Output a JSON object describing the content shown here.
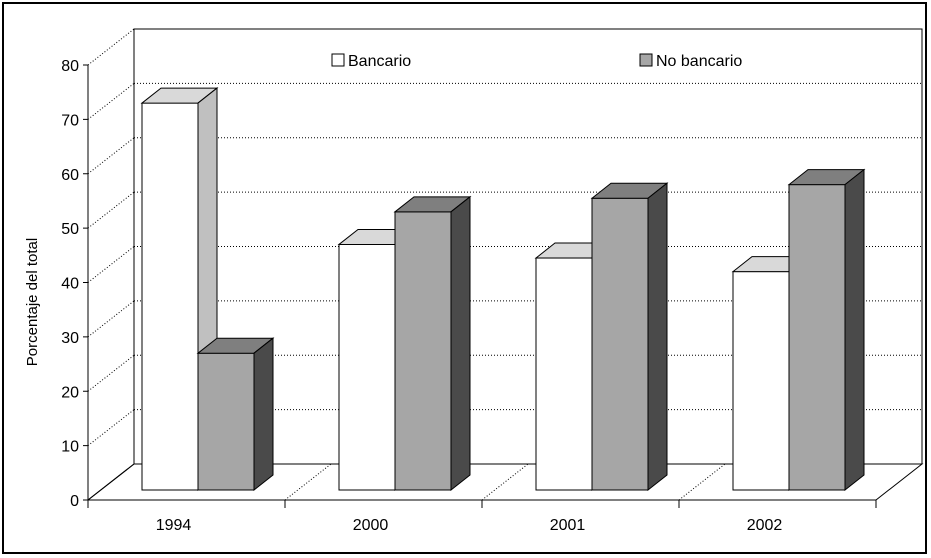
{
  "chart_data": {
    "type": "bar",
    "categories": [
      "1994",
      "2000",
      "2001",
      "2002"
    ],
    "series": [
      {
        "name": "Bancario",
        "values": [
          73,
          47,
          44.5,
          42
        ],
        "color": "#ffffff"
      },
      {
        "name": "No bancario",
        "values": [
          27,
          53,
          55.5,
          58
        ],
        "color": "#a6a6a6"
      }
    ],
    "ylabel": "Porcentaje del total",
    "xlabel": "",
    "ylim": [
      0,
      80
    ],
    "yticks": [
      0,
      10,
      20,
      30,
      40,
      50,
      60,
      70,
      80
    ],
    "grid": true,
    "three_d": true,
    "legend_position": "top"
  }
}
